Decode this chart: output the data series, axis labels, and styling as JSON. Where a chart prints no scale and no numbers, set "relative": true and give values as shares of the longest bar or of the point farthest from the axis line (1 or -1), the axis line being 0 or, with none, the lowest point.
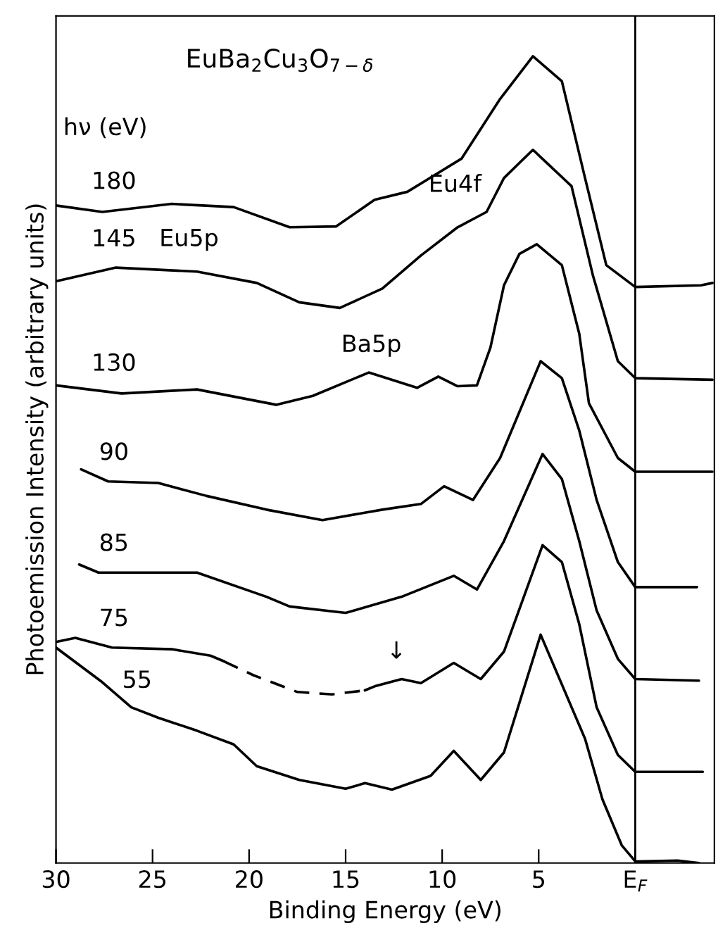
{
  "chart_data": {
    "type": "line",
    "relative": true,
    "title": "EuBa$_{2}$Cu$_{3}$O$_{7−δ}$",
    "xlabel": "Binding Energy (eV)",
    "ylabel": "Photoemission Intensity (arbitrary units)",
    "xlim": [
      30,
      -4.1
    ],
    "xticks": [
      30,
      25,
      20,
      15,
      10,
      5,
      {
        "value": 0,
        "label": "E$_{F}$"
      }
    ],
    "grid": false,
    "legend": false,
    "marker": "none",
    "ref_lines": [
      {
        "axis": "x",
        "value": 0,
        "color": "#000000"
      }
    ],
    "annotations": [
      "hν (eV)",
      "Eu4f",
      "Eu5p",
      "Ba5p",
      "↓"
    ],
    "series": [
      {
        "name": "180",
        "color": "#000000",
        "line_style": "solid",
        "x": [
          30,
          27.6,
          24.0,
          20.8,
          17.9,
          15.5,
          13.5,
          11.8,
          9.0,
          7.0,
          5.3,
          3.8,
          2.6,
          1.5,
          0,
          -3.4,
          -4.0
        ],
        "values": [
          0.815,
          0.807,
          0.817,
          0.813,
          0.788,
          0.789,
          0.822,
          0.832,
          0.873,
          0.947,
          1.0,
          0.969,
          0.849,
          0.741,
          0.714,
          0.716,
          0.719
        ]
      },
      {
        "name": "145",
        "color": "#000000",
        "line_style": "solid",
        "x": [
          30,
          26.9,
          22.7,
          19.6,
          17.4,
          15.3,
          13.1,
          11.1,
          9.2,
          7.7,
          6.8,
          5.3,
          3.3,
          2.2,
          0.9,
          0,
          -4.0
        ],
        "values": [
          0.721,
          0.738,
          0.733,
          0.719,
          0.695,
          0.688,
          0.712,
          0.753,
          0.788,
          0.807,
          0.849,
          0.884,
          0.839,
          0.729,
          0.622,
          0.601,
          0.599
        ]
      },
      {
        "name": "130",
        "color": "#000000",
        "line_style": "solid",
        "x": [
          30,
          26.6,
          22.7,
          18.6,
          16.7,
          13.8,
          11.3,
          10.2,
          9.2,
          8.2,
          7.5,
          6.8,
          6.0,
          5.1,
          3.8,
          2.9,
          2.4,
          0.9,
          0,
          -4.0
        ],
        "values": [
          0.592,
          0.582,
          0.587,
          0.568,
          0.579,
          0.608,
          0.589,
          0.603,
          0.591,
          0.592,
          0.639,
          0.716,
          0.755,
          0.767,
          0.741,
          0.656,
          0.57,
          0.502,
          0.485,
          0.485
        ]
      },
      {
        "name": "90",
        "color": "#000000",
        "line_style": "solid",
        "x": [
          28.7,
          27.3,
          24.7,
          22.2,
          19.1,
          16.2,
          13.1,
          11.1,
          9.9,
          8.4,
          7.0,
          4.9,
          3.8,
          2.9,
          2.0,
          0.9,
          0,
          -3.2
        ],
        "values": [
          0.488,
          0.473,
          0.471,
          0.455,
          0.438,
          0.425,
          0.438,
          0.445,
          0.467,
          0.45,
          0.502,
          0.622,
          0.601,
          0.536,
          0.45,
          0.373,
          0.342,
          0.342
        ]
      },
      {
        "name": "85",
        "color": "#000000",
        "line_style": "solid",
        "x": [
          28.8,
          27.8,
          22.7,
          19.1,
          17.9,
          15.0,
          12.1,
          9.4,
          8.2,
          6.8,
          4.8,
          3.8,
          2.9,
          2.0,
          0.9,
          0,
          -3.3
        ],
        "values": [
          0.37,
          0.36,
          0.36,
          0.33,
          0.318,
          0.31,
          0.33,
          0.356,
          0.339,
          0.399,
          0.507,
          0.476,
          0.399,
          0.313,
          0.253,
          0.228,
          0.226
        ]
      },
      {
        "name": "75",
        "color": "#000000",
        "line_style": "solid",
        "x": [
          30,
          29.0,
          27.1,
          24.0,
          22.0,
          21.3,
          17.5,
          14.0,
          13.5,
          12.1,
          11.1,
          9.4,
          8.0,
          6.8,
          4.8,
          3.8,
          2.9,
          2.0,
          0.9,
          0,
          -3.5
        ],
        "values": [
          0.274,
          0.279,
          0.267,
          0.265,
          0.257,
          0.25,
          null,
          0.214,
          0.219,
          0.228,
          0.223,
          0.248,
          0.228,
          0.262,
          0.394,
          0.373,
          0.296,
          0.193,
          0.134,
          0.113,
          0.113
        ]
      },
      {
        "color": "#000000",
        "line_style": "dashed",
        "x": [
          21.3,
          19.8,
          17.5,
          15.7,
          14.0
        ],
        "values": [
          0.25,
          0.233,
          0.212,
          0.209,
          0.214
        ]
      },
      {
        "name": "55",
        "color": "#000000",
        "line_style": "solid",
        "x": [
          30,
          27.6,
          26.1,
          24.7,
          22.7,
          20.8,
          19.6,
          17.4,
          15.0,
          14.0,
          12.6,
          10.6,
          9.4,
          8.0,
          6.8,
          4.9,
          2.6,
          1.7,
          0.7,
          0,
          -2.2,
          -3.3
        ],
        "values": [
          0.267,
          0.224,
          0.193,
          0.18,
          0.164,
          0.147,
          0.12,
          0.103,
          0.092,
          0.099,
          0.091,
          0.108,
          0.139,
          0.103,
          0.137,
          0.283,
          0.154,
          0.079,
          0.022,
          0.002,
          0.003,
          0
        ]
      }
    ]
  }
}
